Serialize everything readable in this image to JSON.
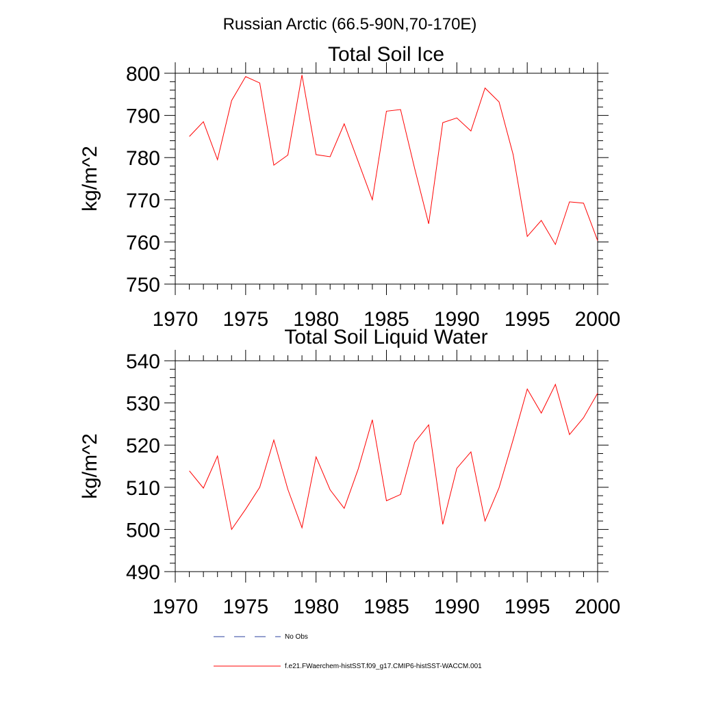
{
  "figure": {
    "suptitle": "Russian Arctic (66.5-90N,70-170E)"
  },
  "chart_data": [
    {
      "type": "line",
      "title": "Total Soil Ice",
      "xlabel": "",
      "ylabel": "kg/m^2",
      "xlim": [
        1970,
        2000
      ],
      "ylim": [
        750,
        800
      ],
      "xticks": [
        1970,
        1975,
        1980,
        1985,
        1990,
        1995,
        2000
      ],
      "yticks": [
        750,
        760,
        770,
        780,
        790,
        800
      ],
      "x": [
        1971,
        1972,
        1973,
        1974,
        1975,
        1976,
        1977,
        1978,
        1979,
        1980,
        1981,
        1982,
        1983,
        1984,
        1985,
        1986,
        1987,
        1988,
        1989,
        1990,
        1991,
        1992,
        1993,
        1994,
        1995,
        1996,
        1997,
        1998,
        1999,
        2000
      ],
      "series": [
        {
          "values": [
            785.0,
            788.5,
            779.5,
            793.5,
            799.2,
            797.7,
            778.2,
            780.6,
            799.6,
            780.7,
            780.2,
            788.0,
            779.0,
            770.0,
            791.0,
            791.4,
            777.5,
            764.3,
            788.3,
            789.4,
            786.3,
            796.5,
            793.2,
            780.7,
            761.3,
            765.1,
            759.4,
            769.5,
            769.2,
            760.3
          ],
          "color": "#ff0000"
        }
      ]
    },
    {
      "type": "line",
      "title": "Total Soil Liquid Water",
      "xlabel": "",
      "ylabel": "kg/m^2",
      "xlim": [
        1970,
        2000
      ],
      "ylim": [
        490,
        540
      ],
      "xticks": [
        1970,
        1975,
        1980,
        1985,
        1990,
        1995,
        2000
      ],
      "yticks": [
        490,
        500,
        510,
        520,
        530,
        540
      ],
      "x": [
        1971,
        1972,
        1973,
        1974,
        1975,
        1976,
        1977,
        1978,
        1979,
        1980,
        1981,
        1982,
        1983,
        1984,
        1985,
        1986,
        1987,
        1988,
        1989,
        1990,
        1991,
        1992,
        1993,
        1994,
        1995,
        1996,
        1997,
        1998,
        1999,
        2000
      ],
      "series": [
        {
          "values": [
            513.9,
            509.8,
            517.4,
            500.0,
            504.8,
            510.0,
            521.2,
            509.5,
            500.4,
            517.2,
            509.4,
            505.0,
            514.4,
            526.0,
            506.8,
            508.3,
            520.6,
            524.8,
            501.2,
            514.5,
            518.4,
            502.0,
            509.9,
            521.3,
            533.3,
            527.6,
            534.4,
            522.5,
            526.5,
            532.3
          ],
          "color": "#ff0000"
        }
      ]
    }
  ],
  "legend": [
    {
      "label": "No Obs",
      "color": "#2a3f9e",
      "dash": "dashed"
    },
    {
      "label": "f.e21.FWaerchem-histSST.f09_g17.CMIP6-histSST-WACCM.001",
      "color": "#ff0000",
      "dash": "solid"
    }
  ]
}
